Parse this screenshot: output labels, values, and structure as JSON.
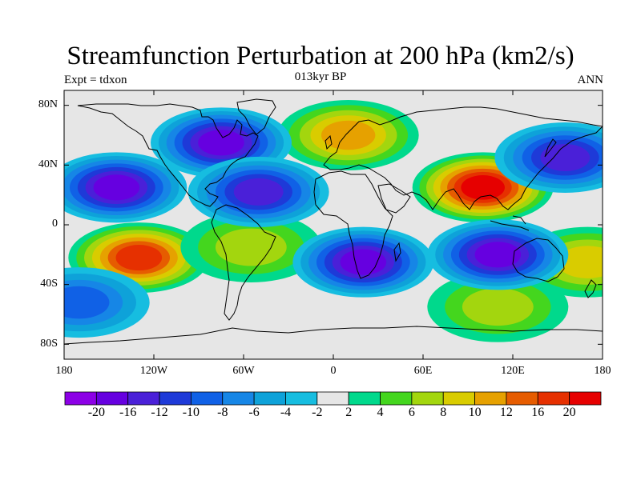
{
  "title": "Streamfunction Perturbation at 200 hPa (km2/s)",
  "center_string": "013kyr BP",
  "left_string": "Expt = tdxon",
  "right_string": "ANN",
  "axes": {
    "y_ticks": [
      "80N",
      "40N",
      "0",
      "40S",
      "80S"
    ],
    "x_ticks": [
      "180",
      "120W",
      "60W",
      "0",
      "60E",
      "120E",
      "180"
    ]
  },
  "colorbar": {
    "labels": [
      "-20",
      "-16",
      "-12",
      "-10",
      "-8",
      "-6",
      "-4",
      "-2",
      "2",
      "4",
      "6",
      "8",
      "10",
      "12",
      "16",
      "20"
    ],
    "colors": [
      "#8c00e6",
      "#6600e0",
      "#4a20d8",
      "#1e3ad8",
      "#1061e6",
      "#1686e6",
      "#0ea2d9",
      "#16bde0",
      "#e6e6e6",
      "#00d98c",
      "#44d61e",
      "#a3d60e",
      "#d9cc00",
      "#e6a100",
      "#e65c00",
      "#e63000",
      "#e60000"
    ]
  },
  "map_data": {
    "projection": "cylindrical-equidistant",
    "lon_range": [
      -180,
      180
    ],
    "lat_range": [
      -90,
      90
    ],
    "field": "streamfunction perturbation",
    "units": "km2/s",
    "highs": [
      {
        "region": "Central Asia / Tibet",
        "lon": 100,
        "lat": 25,
        "level": 20
      },
      {
        "region": "South Pacific (east)",
        "lon": -130,
        "lat": -22,
        "level": 16
      },
      {
        "region": "Europe / North Atlantic",
        "lon": 10,
        "lat": 60,
        "level": 10
      },
      {
        "region": "Central South America",
        "lon": -55,
        "lat": -15,
        "level": 6
      },
      {
        "region": "Southern Ocean (south of Australia)",
        "lon": 110,
        "lat": -55,
        "level": 6
      },
      {
        "region": "Western South Pacific",
        "lon": 170,
        "lat": -25,
        "level": 8
      }
    ],
    "lows": [
      {
        "region": "North Pacific (east)",
        "lon": -145,
        "lat": 25,
        "level": -16
      },
      {
        "region": "Canada / Hudson Bay",
        "lon": -75,
        "lat": 55,
        "level": -16
      },
      {
        "region": "Subtropical Atlantic",
        "lon": -50,
        "lat": 22,
        "level": -12
      },
      {
        "region": "Southern Africa / Indian Ocean",
        "lon": 20,
        "lat": -25,
        "level": -16
      },
      {
        "region": "Australia / Indian Ocean",
        "lon": 110,
        "lat": -20,
        "level": -16
      },
      {
        "region": "North Pacific (west)",
        "lon": 155,
        "lat": 45,
        "level": -12
      },
      {
        "region": "Southeast Pacific",
        "lon": -170,
        "lat": -52,
        "level": -8
      }
    ]
  }
}
